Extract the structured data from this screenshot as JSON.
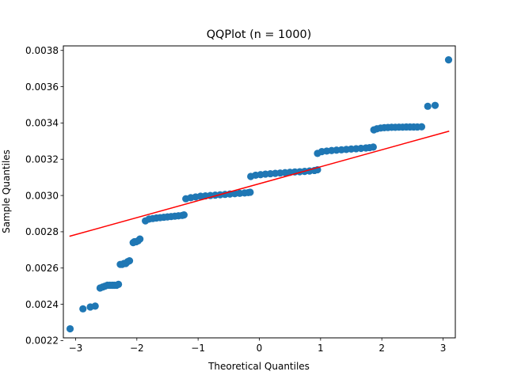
{
  "chart_data": {
    "type": "scatter",
    "title": "QQPlot (n = 1000)",
    "xlabel": "Theoretical Quantiles",
    "ylabel": "Sample Quantiles",
    "xlim": [
      -3.2,
      3.2
    ],
    "ylim": [
      0.002215,
      0.003825
    ],
    "x_ticks": [
      -3,
      -2,
      -1,
      0,
      1,
      2,
      3
    ],
    "x_tick_labels": [
      "−3",
      "−2",
      "−1",
      "0",
      "1",
      "2",
      "3"
    ],
    "y_ticks": [
      0.0022,
      0.0024,
      0.0026,
      0.0028,
      0.003,
      0.0032,
      0.0034,
      0.0036,
      0.0038
    ],
    "y_tick_labels": [
      "0.0022",
      "0.0024",
      "0.0026",
      "0.0028",
      "0.0030",
      "0.0032",
      "0.0034",
      "0.0036",
      "0.0038"
    ],
    "grid": false,
    "point_color": "#1f77b4",
    "line_color": "#ff0000",
    "reference_line": {
      "x": [
        -3.1,
        3.1
      ],
      "y": [
        0.002775,
        0.003355
      ]
    },
    "series": [
      {
        "x": [
          -3.09,
          -2.88,
          -2.76,
          -2.68,
          -2.6,
          -2.56,
          -2.52,
          -2.48,
          -2.44,
          -2.4,
          -2.37,
          -2.33,
          -2.3,
          -2.27,
          -2.24,
          -2.21,
          -2.18,
          -2.15,
          -2.12,
          -2.06,
          -2.04,
          -2.01,
          -1.98,
          -1.95,
          -1.86,
          -1.8,
          -1.74,
          -1.68,
          -1.62,
          -1.56,
          -1.5,
          -1.44,
          -1.38,
          -1.32,
          -1.26,
          -1.23,
          -1.2,
          -1.12,
          -1.04,
          -0.96,
          -0.88,
          -0.8,
          -0.72,
          -0.64,
          -0.56,
          -0.48,
          -0.4,
          -0.32,
          -0.24,
          -0.18,
          -0.15,
          -0.14,
          -0.06,
          0.02,
          0.1,
          0.18,
          0.26,
          0.34,
          0.42,
          0.5,
          0.58,
          0.66,
          0.74,
          0.82,
          0.9,
          0.95,
          0.95,
          1.02,
          1.1,
          1.18,
          1.26,
          1.34,
          1.42,
          1.5,
          1.58,
          1.66,
          1.74,
          1.8,
          1.86,
          1.87,
          1.92,
          1.98,
          2.04,
          2.1,
          2.16,
          2.22,
          2.28,
          2.34,
          2.4,
          2.46,
          2.52,
          2.58,
          2.65,
          2.75,
          2.87,
          3.09
        ],
        "y": [
          0.002265,
          0.002375,
          0.002385,
          0.00239,
          0.00249,
          0.002495,
          0.0025,
          0.002505,
          0.002505,
          0.002505,
          0.002505,
          0.002505,
          0.00251,
          0.00262,
          0.00262,
          0.002625,
          0.002625,
          0.002635,
          0.00264,
          0.00274,
          0.002745,
          0.002745,
          0.00275,
          0.00276,
          0.00286,
          0.00287,
          0.002873,
          0.002876,
          0.002878,
          0.00288,
          0.002882,
          0.002884,
          0.002886,
          0.002888,
          0.00289,
          0.002893,
          0.002982,
          0.002988,
          0.002992,
          0.002996,
          0.002998,
          0.003,
          0.003002,
          0.003004,
          0.003006,
          0.003008,
          0.00301,
          0.003012,
          0.003014,
          0.003016,
          0.003018,
          0.003105,
          0.003112,
          0.003115,
          0.003118,
          0.00312,
          0.003122,
          0.003124,
          0.003126,
          0.003128,
          0.00313,
          0.003131,
          0.003133,
          0.003135,
          0.003138,
          0.003142,
          0.003232,
          0.003242,
          0.003245,
          0.003248,
          0.00325,
          0.003252,
          0.003254,
          0.003256,
          0.003258,
          0.00326,
          0.003262,
          0.003264,
          0.003267,
          0.003362,
          0.003368,
          0.003372,
          0.003374,
          0.003375,
          0.003376,
          0.003376,
          0.003377,
          0.003377,
          0.003378,
          0.003378,
          0.003378,
          0.003378,
          0.003379,
          0.003492,
          0.003497,
          0.003748
        ]
      }
    ]
  }
}
